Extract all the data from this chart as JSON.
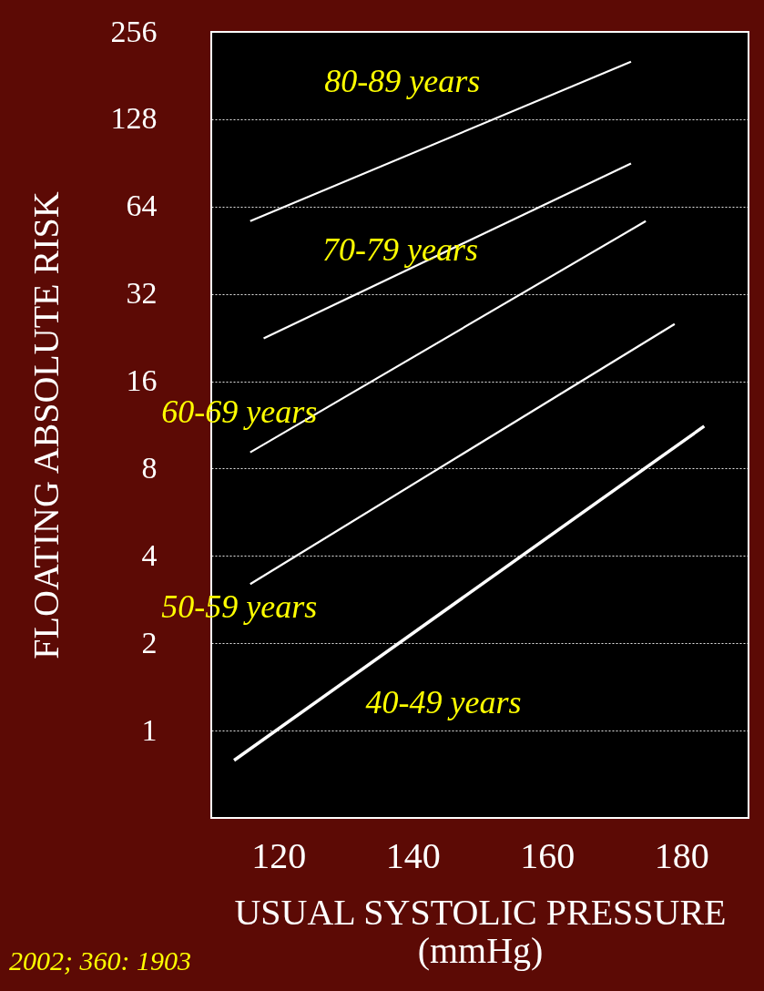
{
  "chart_data": {
    "type": "line",
    "xlabel": "USUAL SYSTOLIC PRESSURE\n(mmHg)",
    "ylabel": "FLOATING ABSOLUTE RISK",
    "log": "y",
    "grid": "y",
    "line_style": "solid",
    "marker": "none",
    "xlim": [
      110,
      190
    ],
    "xticks": [
      120,
      140,
      160,
      180
    ],
    "ylim": [
      0.5,
      256
    ],
    "yticks": [
      1,
      2,
      4,
      8,
      16,
      32,
      64,
      128,
      256
    ],
    "series": [
      {
        "name": "80-89 years",
        "color": "#ffffff",
        "x": [
          115.8,
          172.5
        ],
        "values": [
          57,
          202
        ]
      },
      {
        "name": "70-79 years",
        "color": "#ffffff",
        "x": [
          117.8,
          172.5
        ],
        "values": [
          22.5,
          90
        ]
      },
      {
        "name": "60-69 years",
        "color": "#ffffff",
        "x": [
          115.8,
          174.7
        ],
        "values": [
          9.1,
          57
        ]
      },
      {
        "name": "50-59 years",
        "color": "#ffffff",
        "x": [
          115.8,
          179
        ],
        "values": [
          3.2,
          25.2
        ]
      },
      {
        "name": "40-49 years",
        "color": "#ffffff",
        "x": [
          113.4,
          183.4
        ],
        "values": [
          0.79,
          11.2
        ]
      }
    ],
    "annotations": [
      "2002; 360: 1903"
    ]
  }
}
